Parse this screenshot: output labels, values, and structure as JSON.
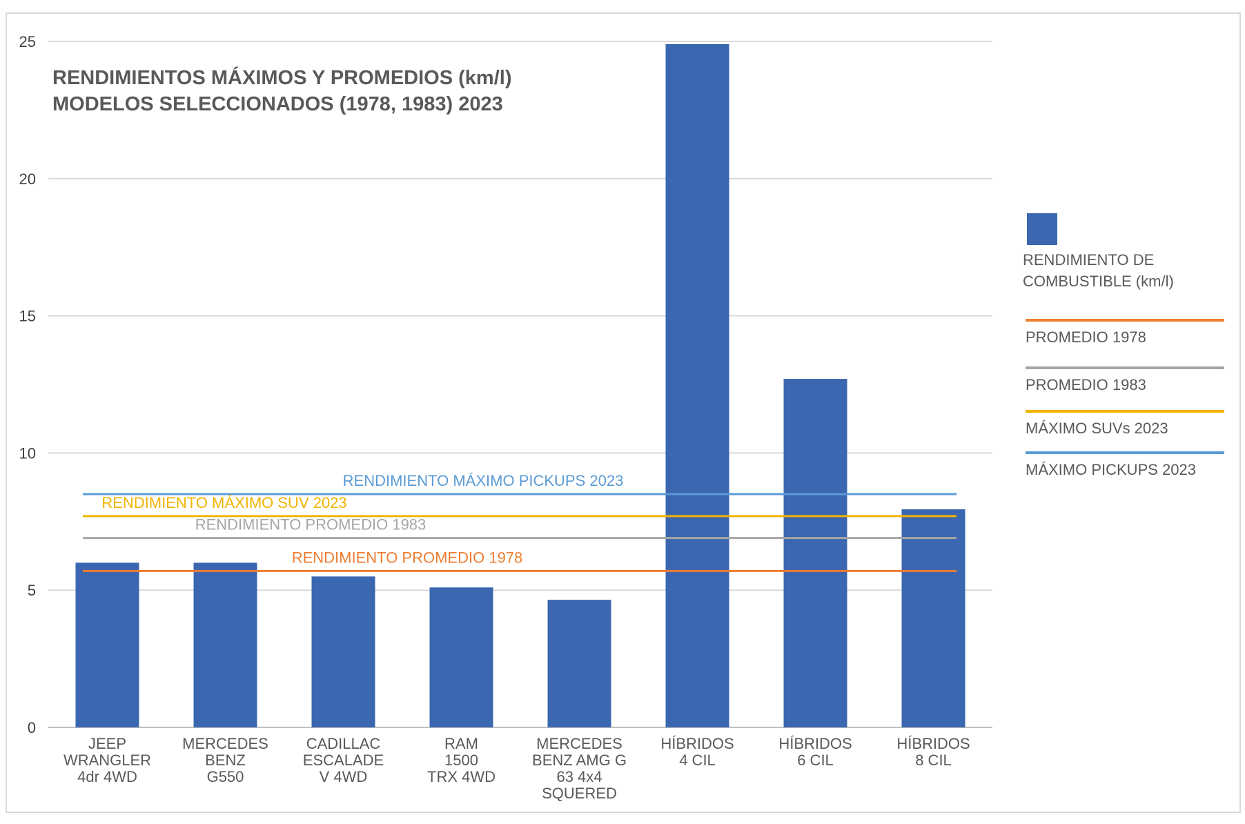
{
  "chart_data": {
    "type": "bar",
    "title_lines": [
      "RENDIMIENTOS MÁXIMOS Y PROMEDIOS (km/l)",
      "MODELOS SELECCIONADOS (1978, 1983) 2023"
    ],
    "categories": [
      [
        "JEEP",
        "WRANGLER",
        "4dr 4WD"
      ],
      [
        "MERCEDES",
        "BENZ",
        "G550"
      ],
      [
        "CADILLAC",
        "ESCALADE",
        "V 4WD"
      ],
      [
        "RAM",
        "1500",
        "TRX 4WD"
      ],
      [
        "MERCEDES",
        "BENZ AMG G",
        "63 4x4",
        "SQUERED"
      ],
      [
        "HÍBRIDOS",
        "4 CIL"
      ],
      [
        "HÍBRIDOS",
        "6 CIL"
      ],
      [
        "HÍBRIDOS",
        "8 CIL"
      ]
    ],
    "series": [
      {
        "name": "RENDIMIENTO DE COMBUSTIBLE (km/l)",
        "color": "#3b67b0",
        "values": [
          6.0,
          6.0,
          5.5,
          5.1,
          4.65,
          24.9,
          12.7,
          7.95
        ]
      }
    ],
    "reference_lines": [
      {
        "value": 8.5,
        "color": "#5b9bd5",
        "label": "RENDIMIENTO MÁXIMO PICKUPS 2023",
        "legend": "MÁXIMO PICKUPS 2023"
      },
      {
        "value": 7.7,
        "color": "#f0b400",
        "label": "RENDIMIENTO MÁXIMO SUV 2023",
        "legend": "MÁXIMO SUVs 2023"
      },
      {
        "value": 6.9,
        "color": "#a5a5a5",
        "label": "RENDIMIENTO PROMEDIO 1983",
        "legend": "PROMEDIO 1983"
      },
      {
        "value": 5.7,
        "color": "#ed7d31",
        "label": "RENDIMIENTO PROMEDIO 1978",
        "legend": "PROMEDIO 1978"
      }
    ],
    "legend_order": [
      "MÁXIMO PICKUPS 2023",
      "MÁXIMO SUVs 2023",
      "PROMEDIO 1983",
      "PROMEDIO 1978"
    ],
    "yticks": [
      0,
      5,
      10,
      15,
      20,
      25
    ],
    "ylim": [
      0,
      25
    ],
    "grid": true,
    "legend_position": "right"
  }
}
